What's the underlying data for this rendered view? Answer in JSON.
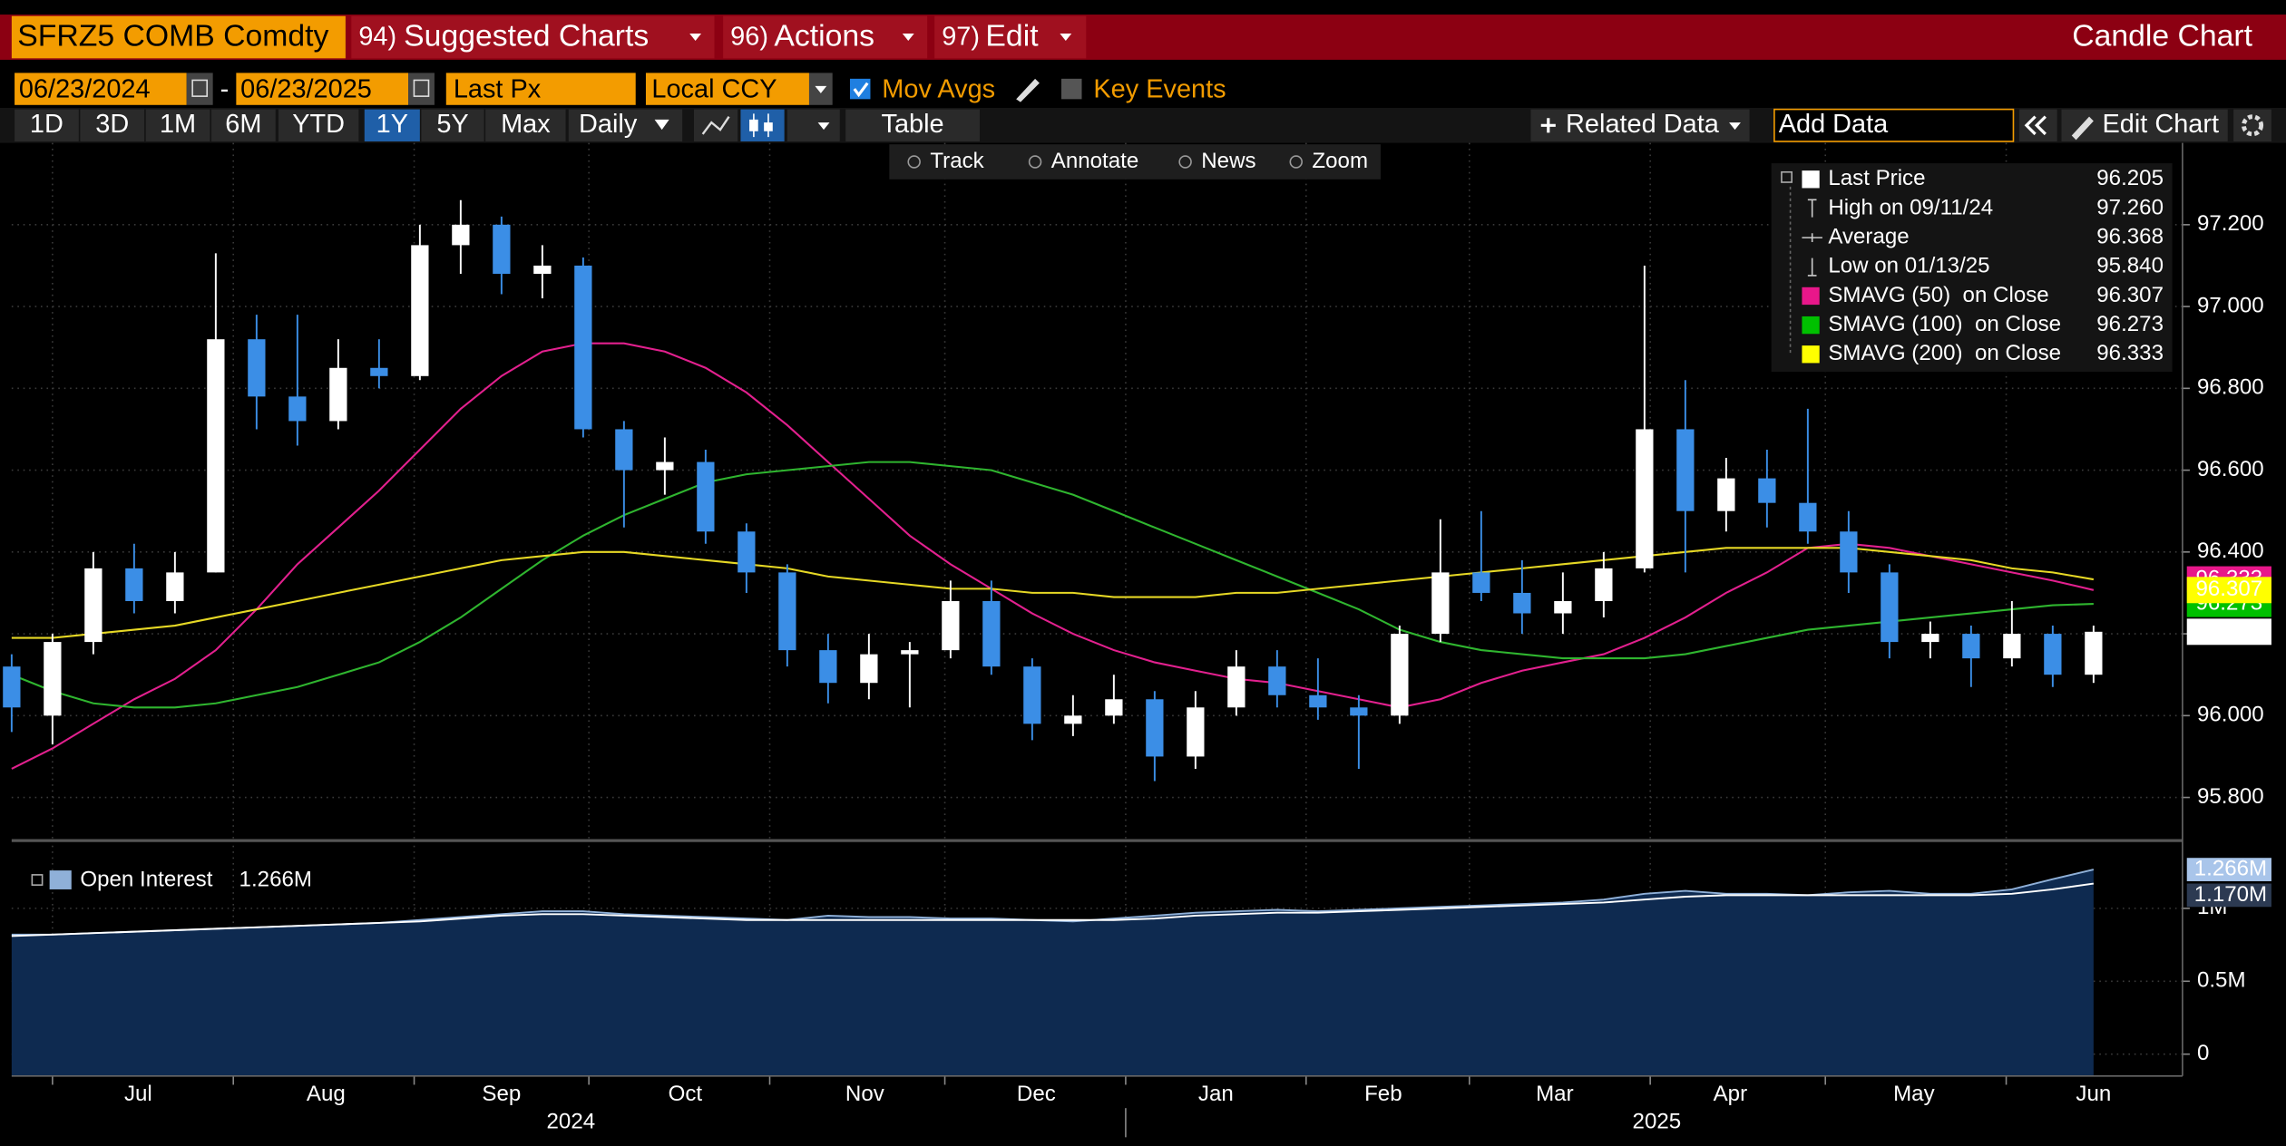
{
  "header": {
    "ticker": "SFRZ5 COMB Comdty",
    "menus": [
      {
        "num": "94)",
        "label": "Suggested Charts"
      },
      {
        "num": "96)",
        "label": "Actions"
      },
      {
        "num": "97)",
        "label": "Edit"
      }
    ],
    "view": "Candle Chart"
  },
  "controls": {
    "start_date": "06/23/2024",
    "separator": "-",
    "end_date": "06/23/2025",
    "field": "Last Px",
    "currency": "Local CCY",
    "mov_avgs": "Mov Avgs",
    "key_events": "Key Events"
  },
  "ranges": [
    "1D",
    "3D",
    "1M",
    "6M",
    "YTD",
    "1Y",
    "5Y",
    "Max"
  ],
  "selected_range": 5,
  "frequency": "Daily",
  "table": "Table",
  "related_data": "Related Data",
  "add_data": "Add Data",
  "edit_chart": "Edit Chart",
  "tools": [
    "Track",
    "Annotate",
    "News",
    "Zoom"
  ],
  "chart_data": {
    "type": "candlestick",
    "x": [
      0,
      1,
      2,
      3,
      4,
      5,
      6,
      7,
      8,
      9,
      10,
      11,
      12,
      13,
      14,
      15,
      16,
      17,
      18,
      19,
      20,
      21,
      22,
      23,
      24,
      25,
      26,
      27,
      28,
      29,
      30,
      31,
      32,
      33,
      34,
      35,
      36,
      37,
      38,
      39,
      40,
      41,
      42,
      43,
      44,
      45,
      46,
      47,
      48,
      49,
      50,
      51
    ],
    "open": [
      96.12,
      96.0,
      96.18,
      96.36,
      96.28,
      96.35,
      96.92,
      96.78,
      96.72,
      96.85,
      96.83,
      97.15,
      97.2,
      97.08,
      97.1,
      96.7,
      96.6,
      96.62,
      96.45,
      96.35,
      96.16,
      96.08,
      96.15,
      96.16,
      96.28,
      96.12,
      95.98,
      96.0,
      96.04,
      95.9,
      96.02,
      96.12,
      96.05,
      96.02,
      96.0,
      96.2,
      96.35,
      96.3,
      96.25,
      96.28,
      96.36,
      96.7,
      96.5,
      96.58,
      96.52,
      96.45,
      96.35,
      96.18,
      96.2,
      96.14,
      96.2,
      96.1
    ],
    "high": [
      96.15,
      96.2,
      96.4,
      96.42,
      96.4,
      97.13,
      96.98,
      96.98,
      96.92,
      96.92,
      97.2,
      97.26,
      97.22,
      97.15,
      97.12,
      96.72,
      96.68,
      96.65,
      96.47,
      96.37,
      96.2,
      96.2,
      96.18,
      96.33,
      96.33,
      96.14,
      96.05,
      96.1,
      96.06,
      96.06,
      96.16,
      96.16,
      96.14,
      96.05,
      96.22,
      96.48,
      96.5,
      96.38,
      96.35,
      96.4,
      97.1,
      96.82,
      96.63,
      96.65,
      96.75,
      96.5,
      96.37,
      96.23,
      96.22,
      96.28,
      96.22,
      96.22
    ],
    "low": [
      95.96,
      95.93,
      96.15,
      96.25,
      96.25,
      96.35,
      96.7,
      96.66,
      96.7,
      96.8,
      96.82,
      97.08,
      97.03,
      97.02,
      96.68,
      96.46,
      96.54,
      96.42,
      96.3,
      96.12,
      96.03,
      96.04,
      96.02,
      96.14,
      96.1,
      95.94,
      95.95,
      95.98,
      95.84,
      95.87,
      96.0,
      96.02,
      95.99,
      95.87,
      95.98,
      96.18,
      96.28,
      96.2,
      96.2,
      96.24,
      96.35,
      96.35,
      96.45,
      96.46,
      96.42,
      96.3,
      96.14,
      96.14,
      96.07,
      96.12,
      96.07,
      96.08
    ],
    "close": [
      96.02,
      96.18,
      96.36,
      96.28,
      96.35,
      96.92,
      96.78,
      96.72,
      96.85,
      96.83,
      97.15,
      97.2,
      97.08,
      97.1,
      96.7,
      96.6,
      96.62,
      96.45,
      96.35,
      96.16,
      96.08,
      96.15,
      96.16,
      96.28,
      96.12,
      95.98,
      96.0,
      96.04,
      95.9,
      96.02,
      96.12,
      96.05,
      96.02,
      96.0,
      96.2,
      96.35,
      96.3,
      96.25,
      96.28,
      96.36,
      96.7,
      96.5,
      96.58,
      96.52,
      96.45,
      96.35,
      96.18,
      96.2,
      96.14,
      96.2,
      96.1,
      96.205
    ],
    "up_color": "#ffffff",
    "down_color": "#3b8ee6",
    "series": [
      {
        "name": "SMAVG (50)",
        "color": "#e2208e",
        "values": [
          95.87,
          95.92,
          95.98,
          96.04,
          96.09,
          96.16,
          96.26,
          96.37,
          96.46,
          96.55,
          96.65,
          96.75,
          96.83,
          96.89,
          96.91,
          96.91,
          96.89,
          96.85,
          96.79,
          96.71,
          96.62,
          96.53,
          96.44,
          96.37,
          96.31,
          96.25,
          96.2,
          96.16,
          96.13,
          96.11,
          96.09,
          96.08,
          96.06,
          96.04,
          96.02,
          96.04,
          96.08,
          96.11,
          96.13,
          96.15,
          96.19,
          96.24,
          96.3,
          96.35,
          96.41,
          96.42,
          96.41,
          96.39,
          96.37,
          96.35,
          96.33,
          96.307
        ]
      },
      {
        "name": "SMAVG (100)",
        "color": "#2fb52f",
        "values": [
          96.1,
          96.06,
          96.03,
          96.02,
          96.02,
          96.03,
          96.05,
          96.07,
          96.1,
          96.13,
          96.18,
          96.24,
          96.31,
          96.38,
          96.44,
          96.49,
          96.53,
          96.57,
          96.59,
          96.6,
          96.61,
          96.62,
          96.62,
          96.61,
          96.6,
          96.57,
          96.54,
          96.5,
          96.46,
          96.42,
          96.38,
          96.34,
          96.3,
          96.26,
          96.21,
          96.18,
          96.16,
          96.15,
          96.14,
          96.14,
          96.14,
          96.15,
          96.17,
          96.19,
          96.21,
          96.22,
          96.23,
          96.24,
          96.25,
          96.26,
          96.27,
          96.273
        ]
      },
      {
        "name": "SMAVG (200)",
        "color": "#e6d825",
        "values": [
          96.19,
          96.19,
          96.2,
          96.21,
          96.22,
          96.24,
          96.26,
          96.28,
          96.3,
          96.32,
          96.34,
          96.36,
          96.38,
          96.39,
          96.4,
          96.4,
          96.39,
          96.38,
          96.37,
          96.36,
          96.34,
          96.33,
          96.32,
          96.31,
          96.31,
          96.3,
          96.3,
          96.29,
          96.29,
          96.29,
          96.3,
          96.3,
          96.31,
          96.32,
          96.33,
          96.34,
          96.35,
          96.36,
          96.37,
          96.38,
          96.39,
          96.4,
          96.41,
          96.41,
          96.41,
          96.41,
          96.4,
          96.39,
          96.38,
          96.36,
          96.35,
          96.333
        ]
      }
    ],
    "legend": [
      {
        "name": "Last Price",
        "value": "96.205",
        "color": "#ffffff"
      },
      {
        "name": "High on 09/11/24",
        "value": "97.260"
      },
      {
        "name": "Average",
        "value": "96.368"
      },
      {
        "name": "Low on 01/13/25",
        "value": "95.840"
      },
      {
        "name": "SMAVG (50)  on Close",
        "value": "96.307",
        "color": "#e8178a"
      },
      {
        "name": "SMAVG (100)  on Close",
        "value": "96.273",
        "color": "#00c000"
      },
      {
        "name": "SMAVG (200)  on Close",
        "value": "96.333",
        "color": "#ffff00"
      }
    ],
    "xlim": [
      0,
      52
    ],
    "xticks": [
      {
        "value": 3.1,
        "label": "Jul"
      },
      {
        "value": 7.7,
        "label": "Aug"
      },
      {
        "value": 12,
        "label": "Sep"
      },
      {
        "value": 16.5,
        "label": "Oct"
      },
      {
        "value": 20.9,
        "label": "Nov"
      },
      {
        "value": 25.1,
        "label": "Dec"
      },
      {
        "value": 29.5,
        "label": "Jan"
      },
      {
        "value": 33.6,
        "label": "Feb"
      },
      {
        "value": 37.8,
        "label": "Mar"
      },
      {
        "value": 42.1,
        "label": "Apr"
      },
      {
        "value": 46.6,
        "label": "May"
      },
      {
        "value": 51,
        "label": "Jun"
      }
    ],
    "xgrid": [
      1,
      5.43,
      9.86,
      14.14,
      18.57,
      22.86,
      27.29,
      31.71,
      35.71,
      40.14,
      44.43,
      48.86
    ],
    "years": [
      {
        "value": 13.7,
        "label": "2024"
      },
      {
        "value": 40.3,
        "label": "2025"
      }
    ],
    "year_break": 27.29,
    "ylim": [
      95.7,
      97.4
    ],
    "yticks": [
      {
        "value": 95.8,
        "label": "95.800"
      },
      {
        "value": 96,
        "label": "96.000"
      },
      {
        "value": 96.2,
        "label": "96.200"
      },
      {
        "value": 96.4,
        "label": "96.400"
      },
      {
        "value": 96.6,
        "label": "96.600"
      },
      {
        "value": 96.8,
        "label": "96.800"
      },
      {
        "value": 97,
        "label": "97.000"
      },
      {
        "value": 97.2,
        "label": "97.200"
      }
    ],
    "grid": true,
    "lower": {
      "type": "area",
      "ylim": [
        -150000,
        1430000
      ],
      "yticks": [
        0,
        {
          "value": 500000,
          "label": "0.5M"
        },
        {
          "value": 1000000,
          "label": "1M"
        }
      ],
      "series": [
        {
          "name": "Open Interest",
          "color": "#0e2a50",
          "line_color": "#8fb0d8",
          "value_label": "1.266M",
          "values": [
            820000,
            820000,
            830000,
            840000,
            850000,
            860000,
            870000,
            880000,
            890000,
            900000,
            920000,
            940000,
            960000,
            980000,
            980000,
            960000,
            950000,
            940000,
            930000,
            920000,
            950000,
            940000,
            940000,
            930000,
            930000,
            920000,
            910000,
            930000,
            950000,
            970000,
            980000,
            990000,
            980000,
            990000,
            1000000,
            1010000,
            1020000,
            1030000,
            1040000,
            1060000,
            1100000,
            1120000,
            1100000,
            1100000,
            1090000,
            1110000,
            1120000,
            1100000,
            1100000,
            1130000,
            1200000,
            1266000
          ]
        },
        {
          "color": "#ffffff",
          "value_label": "1.170M",
          "values": [
            810000,
            820000,
            830000,
            840000,
            850000,
            860000,
            870000,
            880000,
            890000,
            900000,
            910000,
            930000,
            950000,
            960000,
            960000,
            950000,
            940000,
            930000,
            920000,
            920000,
            920000,
            920000,
            920000,
            920000,
            920000,
            920000,
            920000,
            920000,
            930000,
            950000,
            960000,
            970000,
            970000,
            980000,
            990000,
            1000000,
            1010000,
            1020000,
            1030000,
            1040000,
            1060000,
            1080000,
            1090000,
            1090000,
            1090000,
            1090000,
            1090000,
            1090000,
            1090000,
            1100000,
            1130000,
            1170000
          ]
        }
      ]
    }
  }
}
